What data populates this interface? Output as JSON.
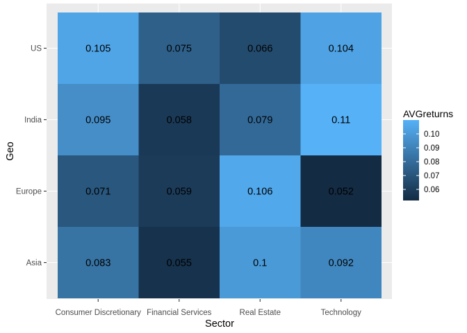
{
  "chart_data": {
    "type": "heatmap",
    "title": "",
    "xlabel": "Sector",
    "ylabel": "Geo",
    "x_categories": [
      "Consumer Discretionary",
      "Financial Services",
      "Real Estate",
      "Technology"
    ],
    "y_categories": [
      "Asia",
      "Europe",
      "India",
      "US"
    ],
    "cells": [
      {
        "x": "Consumer Discretionary",
        "y": "US",
        "value": 0.105,
        "label": "0.105"
      },
      {
        "x": "Financial Services",
        "y": "US",
        "value": 0.075,
        "label": "0.075"
      },
      {
        "x": "Real Estate",
        "y": "US",
        "value": 0.066,
        "label": "0.066"
      },
      {
        "x": "Technology",
        "y": "US",
        "value": 0.104,
        "label": "0.104"
      },
      {
        "x": "Consumer Discretionary",
        "y": "India",
        "value": 0.095,
        "label": "0.095"
      },
      {
        "x": "Financial Services",
        "y": "India",
        "value": 0.058,
        "label": "0.058"
      },
      {
        "x": "Real Estate",
        "y": "India",
        "value": 0.079,
        "label": "0.079"
      },
      {
        "x": "Technology",
        "y": "India",
        "value": 0.11,
        "label": "0.11"
      },
      {
        "x": "Consumer Discretionary",
        "y": "Europe",
        "value": 0.071,
        "label": "0.071"
      },
      {
        "x": "Financial Services",
        "y": "Europe",
        "value": 0.059,
        "label": "0.059"
      },
      {
        "x": "Real Estate",
        "y": "Europe",
        "value": 0.106,
        "label": "0.106"
      },
      {
        "x": "Technology",
        "y": "Europe",
        "value": 0.052,
        "label": "0.052"
      },
      {
        "x": "Consumer Discretionary",
        "y": "Asia",
        "value": 0.083,
        "label": "0.083"
      },
      {
        "x": "Financial Services",
        "y": "Asia",
        "value": 0.055,
        "label": "0.055"
      },
      {
        "x": "Real Estate",
        "y": "Asia",
        "value": 0.1,
        "label": "0.1"
      },
      {
        "x": "Technology",
        "y": "Asia",
        "value": 0.092,
        "label": "0.092"
      }
    ],
    "legend": {
      "title": "AVGreturns",
      "position": "right",
      "ticks": [
        0.06,
        0.07,
        0.08,
        0.09,
        0.1
      ],
      "tick_labels": [
        "0.06",
        "0.07",
        "0.08",
        "0.09",
        "0.10"
      ],
      "low_color": "#132B43",
      "high_color": "#56B1F7",
      "range": [
        0.052,
        0.11
      ]
    },
    "panel_background": "#EBEBEB",
    "grid": true
  }
}
